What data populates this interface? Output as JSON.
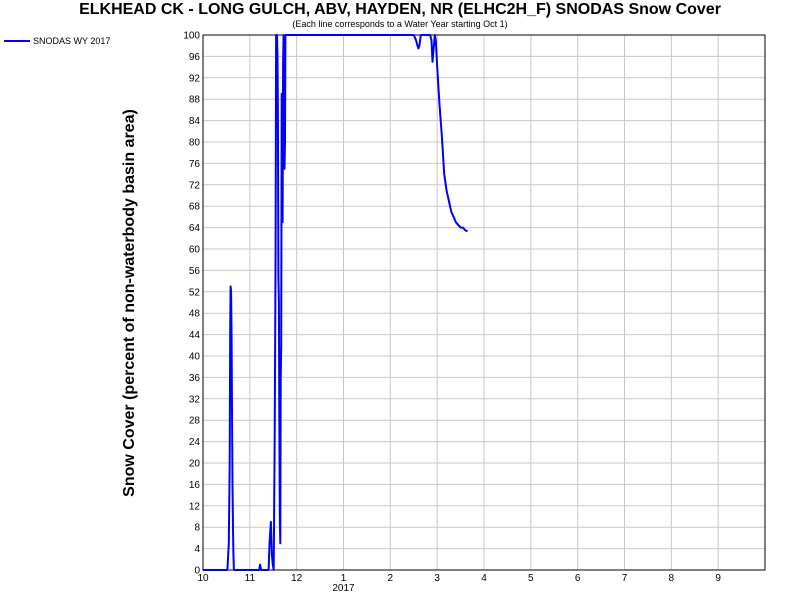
{
  "chart_data": {
    "type": "line",
    "title": "ELKHEAD CK - LONG GULCH, ABV, HAYDEN, NR (ELHC2H_F) SNODAS Snow Cover",
    "subtitle": "(Each line corresponds to a Water Year starting Oct 1)",
    "ylabel": "Snow Cover (percent of non-waterbody basin area)",
    "xlabel": "",
    "ylim": [
      0,
      100
    ],
    "y_ticks": [
      0,
      4,
      8,
      12,
      16,
      20,
      24,
      28,
      32,
      36,
      40,
      44,
      48,
      52,
      56,
      60,
      64,
      68,
      72,
      76,
      80,
      84,
      88,
      92,
      96,
      100
    ],
    "xlim_month_index": [
      0,
      12
    ],
    "x_tick_labels": [
      "10",
      "11",
      "12",
      "1",
      "2",
      "3",
      "4",
      "5",
      "6",
      "7",
      "8",
      "9"
    ],
    "x_year_label": "2017",
    "grid": true,
    "legend_position": "top-left",
    "series": [
      {
        "name": "SNODAS WY 2017",
        "color": "#0000ff",
        "x": [
          0,
          0.45,
          0.52,
          0.55,
          0.57,
          0.58,
          0.59,
          0.6,
          0.61,
          0.62,
          0.63,
          0.64,
          0.65,
          0.66,
          0.68,
          0.7,
          1.0,
          1.2,
          1.22,
          1.24,
          1.3,
          1.4,
          1.42,
          1.45,
          1.47,
          1.49,
          1.51,
          1.53,
          1.55,
          1.56,
          1.57,
          1.58,
          1.59,
          1.6,
          1.61,
          1.62,
          1.63,
          1.64,
          1.65,
          1.66,
          1.67,
          1.68,
          1.69,
          1.7,
          1.71,
          1.72,
          1.73,
          1.74,
          1.75,
          1.76,
          1.77,
          1.78,
          1.79,
          1.8,
          1.82,
          1.84,
          1.86,
          1.88,
          2.0,
          2.5,
          3.0,
          3.5,
          4.5,
          4.55,
          4.58,
          4.6,
          4.62,
          4.65,
          4.7,
          4.75,
          4.8,
          4.85,
          4.88,
          4.9,
          4.92,
          4.94,
          4.95,
          4.97,
          5.0,
          5.05,
          5.1,
          5.15,
          5.2,
          5.25,
          5.3,
          5.35,
          5.4,
          5.45,
          5.5,
          5.55,
          5.6,
          5.65
        ],
        "values": [
          0,
          0,
          0,
          5,
          20,
          45,
          53,
          52,
          43,
          30,
          16,
          8,
          3,
          0,
          0,
          0,
          0,
          0,
          1,
          0,
          0,
          0,
          5,
          9,
          3,
          1,
          0,
          25,
          60,
          100,
          100,
          100,
          96,
          85,
          55,
          50,
          30,
          10,
          5,
          35,
          42,
          89,
          80,
          65,
          95,
          100,
          75,
          75,
          80,
          100,
          100,
          100,
          100,
          100,
          100,
          100,
          100,
          100,
          100,
          100,
          100,
          100,
          100,
          99,
          98,
          97.5,
          98,
          100,
          100,
          100,
          100,
          100,
          99,
          95,
          97,
          99,
          100,
          99,
          94,
          87,
          81,
          74,
          71,
          69,
          67,
          66,
          65,
          64.5,
          64,
          64,
          63.5,
          63.3
        ]
      }
    ]
  }
}
